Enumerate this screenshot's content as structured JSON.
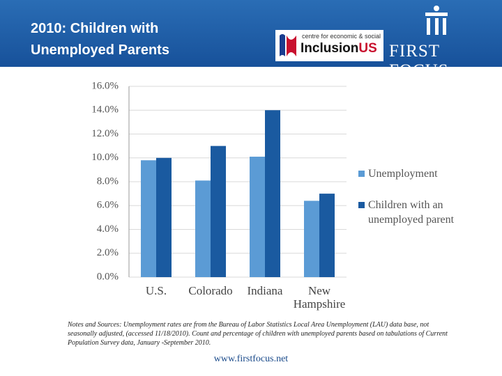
{
  "header": {
    "title": "2010: Children with Unemployed Parents"
  },
  "logos": {
    "inclusion_tagline": "centre for economic & social",
    "inclusion_name": "Inclusion",
    "inclusion_suffix": "US",
    "first_focus": "FIRST FOCUS"
  },
  "chart_data": {
    "type": "bar",
    "categories": [
      "U.S.",
      "Colorado",
      "Indiana",
      "New Hampshire"
    ],
    "series": [
      {
        "name": "Unemployment",
        "color": "#5b9bd5",
        "values": [
          9.8,
          8.1,
          10.1,
          6.4
        ]
      },
      {
        "name": "Children with an unemployed parent",
        "color": "#1a5aa0",
        "values": [
          10.0,
          11.0,
          14.0,
          7.0
        ]
      }
    ],
    "ylim": [
      0,
      16
    ],
    "yticks": [
      {
        "value": 0,
        "label": "0.0%"
      },
      {
        "value": 2,
        "label": "2.0%"
      },
      {
        "value": 4,
        "label": "4.0%"
      },
      {
        "value": 6,
        "label": "6.0%"
      },
      {
        "value": 8,
        "label": "8.0%"
      },
      {
        "value": 10,
        "label": "10.0%"
      },
      {
        "value": 12,
        "label": "12.0%"
      },
      {
        "value": 14,
        "label": "14.0%"
      },
      {
        "value": 16,
        "label": "16.0%"
      }
    ],
    "grid": true,
    "legend": "right"
  },
  "notes": "Notes and Sources: Unemployment rates are from the Bureau of Labor Statistics Local Area Unemployment (LAU) data base, not seasonally adjusted, (accessed 11/18/2010). Count and percentage of children with unemployed parents based on tabulations of Current Population Survey data, January -September 2010.",
  "footer": "www.firstfocus.net"
}
